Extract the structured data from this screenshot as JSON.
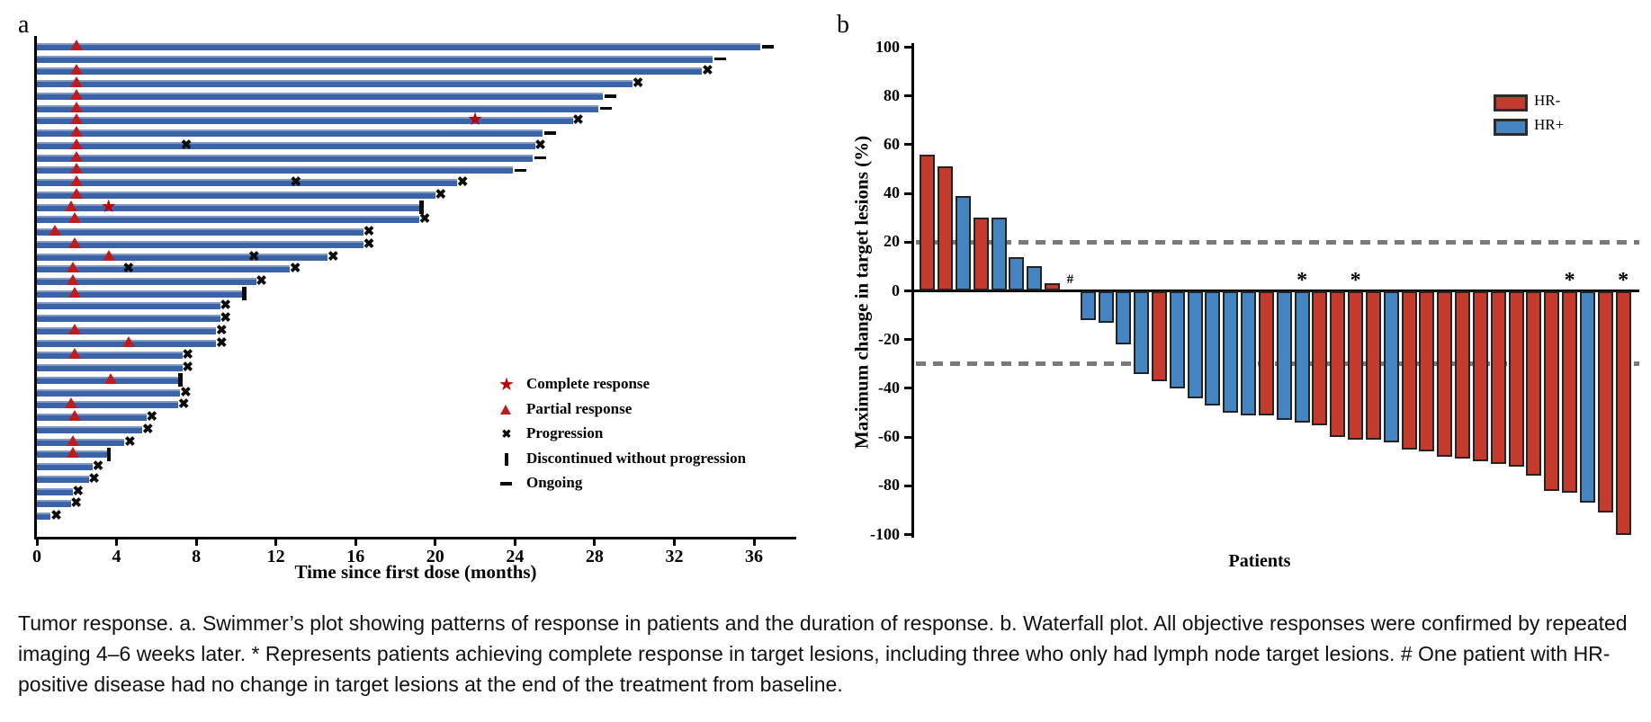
{
  "figure": {
    "panel_a_label": "a",
    "panel_b_label": "b"
  },
  "caption": {
    "text": "Tumor response. a. Swimmer’s plot showing patterns of response in patients and the duration of response. b. Waterfall plot. All objective responses were confirmed by repeated imaging 4–6 weeks later. * Represents patients achieving complete response in target lesions, including three who only had lymph node target lesions. # One patient with HR-positive disease had no change in target lesions at the end of the treatment from baseline."
  },
  "chart_data": [
    {
      "id": "swimmer-plot",
      "type": "bar",
      "orientation": "horizontal",
      "title": "",
      "xlabel": "Time since first dose (months)",
      "xlim": [
        0,
        38
      ],
      "x_ticks": [
        0,
        4,
        8,
        12,
        16,
        20,
        24,
        28,
        32,
        36
      ],
      "grid": false,
      "bar_color": "#3a63a8",
      "bar_highlight_color": "#8099c7",
      "marker_colors": {
        "complete_response": "#c00000",
        "partial_response": "#bf1c1f",
        "progression": "#0a0a0a",
        "discontinued": "#0a0a0a",
        "ongoing": "#0a0a0a"
      },
      "legend_position": "lower-right-inside",
      "legend": [
        {
          "symbol": "star",
          "label": "Complete response",
          "color": "#c00000"
        },
        {
          "symbol": "triangle",
          "label": "Partial response",
          "color": "#bf1c1f"
        },
        {
          "symbol": "x",
          "label": "Progression",
          "color": "#0a0a0a"
        },
        {
          "symbol": "vbar",
          "label": "Discontinued without progression",
          "color": "#0a0a0a"
        },
        {
          "symbol": "dash",
          "label": "Ongoing",
          "color": "#0a0a0a"
        }
      ],
      "patients": [
        {
          "duration": 36.3,
          "end": "ongoing",
          "pr": 2.0
        },
        {
          "duration": 33.9,
          "end": "ongoing"
        },
        {
          "duration": 33.4,
          "end": "progression",
          "pr": 2.0
        },
        {
          "duration": 29.9,
          "end": "progression",
          "pr": 2.0
        },
        {
          "duration": 28.4,
          "end": "ongoing",
          "pr": 2.0
        },
        {
          "duration": 28.2,
          "end": "ongoing",
          "pr": 2.0
        },
        {
          "duration": 26.9,
          "end": "progression",
          "pr": 2.0,
          "cr": 22.0
        },
        {
          "duration": 25.4,
          "end": "ongoing",
          "pr": 2.0
        },
        {
          "duration": 25.0,
          "end": "progression",
          "pr": 2.0,
          "progression_marks": [
            7.5
          ]
        },
        {
          "duration": 24.9,
          "end": "ongoing",
          "pr": 2.0
        },
        {
          "duration": 23.9,
          "end": "ongoing",
          "pr": 2.0
        },
        {
          "duration": 21.1,
          "end": "progression",
          "pr": 2.0,
          "progression_marks": [
            13.0
          ]
        },
        {
          "duration": 20.0,
          "end": "progression",
          "pr": 2.0
        },
        {
          "duration": 19.3,
          "end": "discontinued",
          "pr": 1.7,
          "cr": 3.6
        },
        {
          "duration": 19.2,
          "end": "progression",
          "pr": 1.9
        },
        {
          "duration": 16.4,
          "end": "progression",
          "pr": 0.9
        },
        {
          "duration": 16.4,
          "end": "progression",
          "pr": 1.9
        },
        {
          "duration": 14.6,
          "end": "progression",
          "pr": 3.6,
          "progression_marks": [
            10.9
          ]
        },
        {
          "duration": 12.7,
          "end": "progression",
          "pr": 1.8,
          "progression_marks": [
            4.6
          ]
        },
        {
          "duration": 11.0,
          "end": "progression",
          "pr": 1.8
        },
        {
          "duration": 10.4,
          "end": "discontinued",
          "pr": 1.9
        },
        {
          "duration": 9.2,
          "end": "progression"
        },
        {
          "duration": 9.2,
          "end": "progression"
        },
        {
          "duration": 9.0,
          "end": "progression",
          "pr": 1.9
        },
        {
          "duration": 9.0,
          "end": "progression",
          "pr": 4.6
        },
        {
          "duration": 7.3,
          "end": "progression",
          "pr": 1.9
        },
        {
          "duration": 7.3,
          "end": "progression"
        },
        {
          "duration": 7.2,
          "end": "discontinued",
          "pr": 3.7
        },
        {
          "duration": 7.2,
          "end": "progression"
        },
        {
          "duration": 7.1,
          "end": "progression",
          "pr": 1.7
        },
        {
          "duration": 5.5,
          "end": "progression",
          "pr": 1.9
        },
        {
          "duration": 5.3,
          "end": "progression"
        },
        {
          "duration": 4.4,
          "end": "progression",
          "pr": 1.8
        },
        {
          "duration": 3.6,
          "end": "discontinued",
          "pr": 1.8
        },
        {
          "duration": 2.8,
          "end": "progression"
        },
        {
          "duration": 2.6,
          "end": "progression"
        },
        {
          "duration": 1.8,
          "end": "progression"
        },
        {
          "duration": 1.7,
          "end": "progression"
        },
        {
          "duration": 0.7,
          "end": "progression"
        }
      ]
    },
    {
      "id": "waterfall-plot",
      "type": "bar",
      "orientation": "vertical",
      "title": "",
      "xlabel": "Patients",
      "ylabel": "Maximum change in target lesions (%)",
      "ylim": [
        -100,
        100
      ],
      "y_ticks": [
        100,
        80,
        60,
        40,
        20,
        0,
        -20,
        -40,
        -60,
        -80,
        -100
      ],
      "reference_lines": [
        20,
        -30
      ],
      "reference_line_color": "#7a7a7a",
      "grid": false,
      "legend_position": "upper-right-inside",
      "colors": {
        "HR-": "#c23b2c",
        "HR+": "#4384c1"
      },
      "bar_border_color": "#242424",
      "legend": [
        {
          "label": "HR-",
          "color": "#c23b2c"
        },
        {
          "label": "HR+",
          "color": "#4384c1"
        }
      ],
      "annotations": {
        "asterisk": "*",
        "hash": "#"
      },
      "bars": [
        {
          "value": 56,
          "group": "HR-"
        },
        {
          "value": 51,
          "group": "HR-"
        },
        {
          "value": 39,
          "group": "HR+"
        },
        {
          "value": 30,
          "group": "HR-"
        },
        {
          "value": 30,
          "group": "HR+"
        },
        {
          "value": 14,
          "group": "HR+"
        },
        {
          "value": 10,
          "group": "HR+"
        },
        {
          "value": 3,
          "group": "HR-"
        },
        {
          "value": 0,
          "group": "HR+",
          "mark": "#"
        },
        {
          "value": -12,
          "group": "HR+"
        },
        {
          "value": -13,
          "group": "HR+"
        },
        {
          "value": -22,
          "group": "HR+"
        },
        {
          "value": -34,
          "group": "HR+"
        },
        {
          "value": -37,
          "group": "HR-"
        },
        {
          "value": -40,
          "group": "HR+"
        },
        {
          "value": -44,
          "group": "HR+"
        },
        {
          "value": -47,
          "group": "HR+"
        },
        {
          "value": -50,
          "group": "HR+"
        },
        {
          "value": -51,
          "group": "HR+"
        },
        {
          "value": -51,
          "group": "HR-"
        },
        {
          "value": -53,
          "group": "HR+"
        },
        {
          "value": -54,
          "group": "HR+",
          "mark": "*"
        },
        {
          "value": -55,
          "group": "HR-"
        },
        {
          "value": -60,
          "group": "HR-"
        },
        {
          "value": -61,
          "group": "HR-",
          "mark": "*"
        },
        {
          "value": -61,
          "group": "HR-"
        },
        {
          "value": -62,
          "group": "HR+"
        },
        {
          "value": -65,
          "group": "HR-"
        },
        {
          "value": -66,
          "group": "HR-"
        },
        {
          "value": -68,
          "group": "HR-"
        },
        {
          "value": -69,
          "group": "HR-"
        },
        {
          "value": -70,
          "group": "HR-"
        },
        {
          "value": -71,
          "group": "HR-"
        },
        {
          "value": -72,
          "group": "HR-"
        },
        {
          "value": -76,
          "group": "HR-"
        },
        {
          "value": -82,
          "group": "HR-"
        },
        {
          "value": -83,
          "group": "HR-",
          "mark": "*"
        },
        {
          "value": -87,
          "group": "HR+"
        },
        {
          "value": -91,
          "group": "HR-"
        },
        {
          "value": -100,
          "group": "HR-",
          "mark": "*"
        }
      ]
    }
  ]
}
